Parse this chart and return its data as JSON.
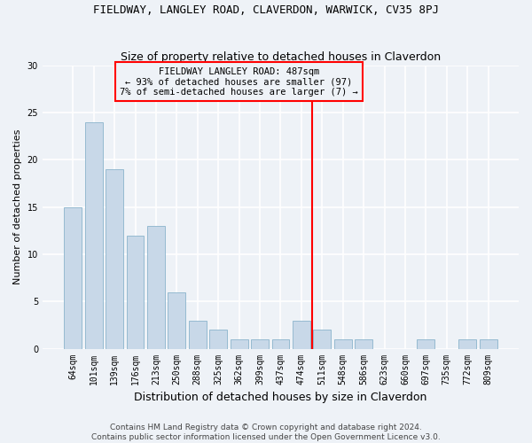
{
  "title": "FIELDWAY, LANGLEY ROAD, CLAVERDON, WARWICK, CV35 8PJ",
  "subtitle": "Size of property relative to detached houses in Claverdon",
  "xlabel": "Distribution of detached houses by size in Claverdon",
  "ylabel": "Number of detached properties",
  "categories": [
    "64sqm",
    "101sqm",
    "139sqm",
    "176sqm",
    "213sqm",
    "250sqm",
    "288sqm",
    "325sqm",
    "362sqm",
    "399sqm",
    "437sqm",
    "474sqm",
    "511sqm",
    "548sqm",
    "586sqm",
    "623sqm",
    "660sqm",
    "697sqm",
    "735sqm",
    "772sqm",
    "809sqm"
  ],
  "values": [
    15,
    24,
    19,
    12,
    13,
    6,
    3,
    2,
    1,
    1,
    1,
    3,
    2,
    1,
    1,
    0,
    0,
    1,
    0,
    1,
    1
  ],
  "bar_color": "#c8d8e8",
  "bar_edge_color": "#8ab4cc",
  "vline_x_index": 11.5,
  "vline_color": "red",
  "annotation_title": "FIELDWAY LANGLEY ROAD: 487sqm",
  "annotation_line1": "← 93% of detached houses are smaller (97)",
  "annotation_line2": "7% of semi-detached houses are larger (7) →",
  "annotation_box_color": "red",
  "ylim": [
    0,
    30
  ],
  "yticks": [
    0,
    5,
    10,
    15,
    20,
    25,
    30
  ],
  "footer_line1": "Contains HM Land Registry data © Crown copyright and database right 2024.",
  "footer_line2": "Contains public sector information licensed under the Open Government Licence v3.0.",
  "background_color": "#eef2f7",
  "grid_color": "white",
  "title_fontsize": 9,
  "subtitle_fontsize": 9,
  "ylabel_fontsize": 8,
  "xlabel_fontsize": 9,
  "tick_fontsize": 7,
  "annotation_fontsize": 7.5,
  "footer_fontsize": 6.5
}
